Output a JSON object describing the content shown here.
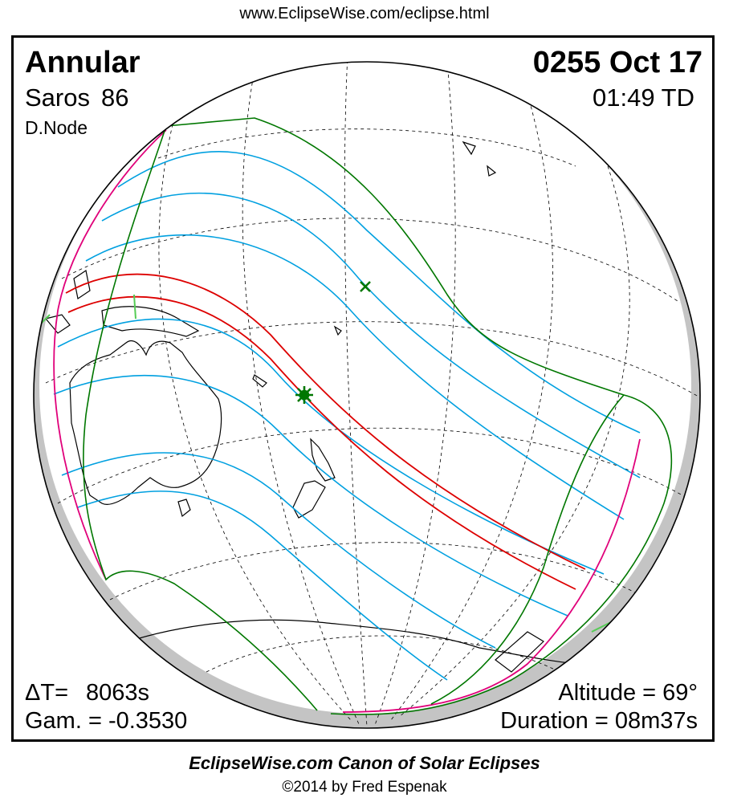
{
  "header": {
    "url": "www.EclipseWise.com/eclipse.html"
  },
  "eclipse": {
    "type": "Annular",
    "saros_label": "Saros",
    "saros_number": "86",
    "node": "D.Node",
    "date": "0255 Oct 17",
    "time": "01:49 TD",
    "delta_t_label": "ΔT=",
    "delta_t_value": "8063s",
    "gamma": "Gam. = -0.3530",
    "altitude": "Altitude = 69°",
    "duration": "Duration = 08m37s"
  },
  "footer": {
    "canon": "EclipseWise.com Canon of Solar Eclipses",
    "copyright": "©2014 by Fred Espenak"
  },
  "colors": {
    "central_path": "#dd0000",
    "penumbral_limits": "#00a0e0",
    "penumbra_boundary": "#007700",
    "sunrise_sunset": "#e0007a",
    "coastline": "#000000",
    "night_shade": "#c0c0c0"
  },
  "markers": {
    "greatest_eclipse": "star-icon",
    "subsolar_point": "x-icon"
  }
}
